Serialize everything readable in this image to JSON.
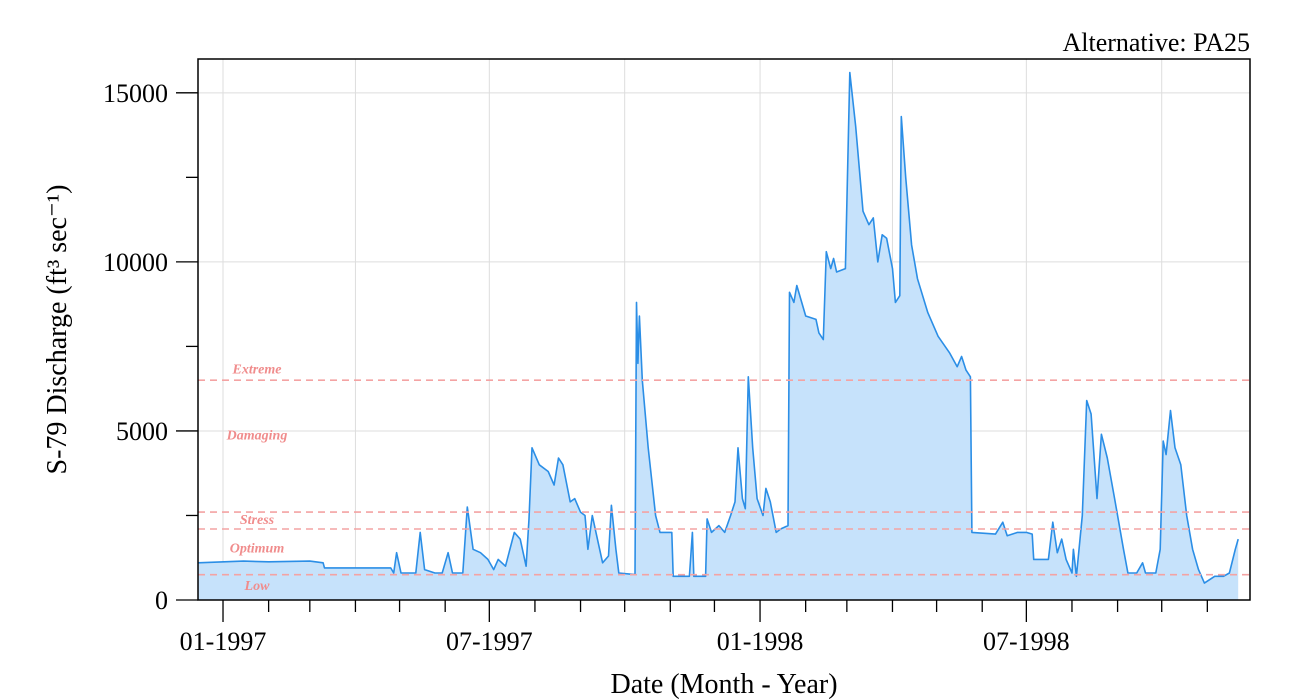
{
  "header": {
    "alternative_label": "Alternative: PA25"
  },
  "chart_data": {
    "type": "area",
    "xlabel": "Date (Month - Year)",
    "ylabel": "S-79 Discharge (ft³ sec⁻¹)",
    "x_range": [
      "1996-12-15",
      "1998-11-30"
    ],
    "ylim": [
      0,
      16000
    ],
    "y_ticks": [
      0,
      5000,
      10000,
      15000
    ],
    "x_tick_labels": [
      {
        "date": "1997-01-01",
        "label": "01-1997"
      },
      {
        "date": "1997-07-01",
        "label": "07-1997"
      },
      {
        "date": "1998-01-01",
        "label": "01-1998"
      },
      {
        "date": "1998-07-01",
        "label": "07-1998"
      }
    ],
    "grid": true,
    "colors": {
      "line": "#2b8ee6",
      "fill": "#c6e2fb",
      "threshold": "#f4a3a3",
      "zone_label": "#f08c8c",
      "grid": "#dddddd"
    },
    "thresholds": [
      750,
      2100,
      2600,
      6500
    ],
    "zone_labels": [
      {
        "label": "Extreme",
        "y": 6700
      },
      {
        "label": "Damaging",
        "y": 4750
      },
      {
        "label": "Stress",
        "y": 2250
      },
      {
        "label": "Optimum",
        "y": 1400
      },
      {
        "label": "Low",
        "y": 300
      }
    ],
    "series": [
      {
        "points": [
          [
            "1996-12-15",
            1100
          ],
          [
            "1997-01-15",
            1150
          ],
          [
            "1997-02-01",
            1130
          ],
          [
            "1997-03-01",
            1150
          ],
          [
            "1997-03-10",
            1100
          ],
          [
            "1997-03-11",
            950
          ],
          [
            "1997-04-25",
            950
          ],
          [
            "1997-04-27",
            800
          ],
          [
            "1997-04-29",
            1400
          ],
          [
            "1997-05-02",
            800
          ],
          [
            "1997-05-12",
            800
          ],
          [
            "1997-05-15",
            2000
          ],
          [
            "1997-05-18",
            900
          ],
          [
            "1997-05-25",
            800
          ],
          [
            "1997-05-30",
            800
          ],
          [
            "1997-06-03",
            1400
          ],
          [
            "1997-06-06",
            800
          ],
          [
            "1997-06-13",
            800
          ],
          [
            "1997-06-16",
            2750
          ],
          [
            "1997-06-20",
            1500
          ],
          [
            "1997-06-25",
            1400
          ],
          [
            "1997-06-30",
            1200
          ],
          [
            "1997-07-04",
            900
          ],
          [
            "1997-07-07",
            1200
          ],
          [
            "1997-07-12",
            1000
          ],
          [
            "1997-07-18",
            2000
          ],
          [
            "1997-07-22",
            1800
          ],
          [
            "1997-07-26",
            1000
          ],
          [
            "1997-07-28",
            2400
          ],
          [
            "1997-07-30",
            4500
          ],
          [
            "1997-08-04",
            4000
          ],
          [
            "1997-08-10",
            3800
          ],
          [
            "1997-08-14",
            3400
          ],
          [
            "1997-08-17",
            4200
          ],
          [
            "1997-08-20",
            4000
          ],
          [
            "1997-08-25",
            2900
          ],
          [
            "1997-08-28",
            3000
          ],
          [
            "1997-09-01",
            2600
          ],
          [
            "1997-09-04",
            2500
          ],
          [
            "1997-09-06",
            1500
          ],
          [
            "1997-09-09",
            2500
          ],
          [
            "1997-09-12",
            1900
          ],
          [
            "1997-09-16",
            1100
          ],
          [
            "1997-09-20",
            1300
          ],
          [
            "1997-09-22",
            2800
          ],
          [
            "1997-09-25",
            1500
          ],
          [
            "1997-09-27",
            800
          ],
          [
            "1997-10-08",
            750
          ],
          [
            "1997-10-09",
            8800
          ],
          [
            "1997-10-10",
            7000
          ],
          [
            "1997-10-11",
            8400
          ],
          [
            "1997-10-13",
            6500
          ],
          [
            "1997-10-17",
            4500
          ],
          [
            "1997-10-22",
            2500
          ],
          [
            "1997-10-25",
            2000
          ],
          [
            "1997-11-02",
            2000
          ],
          [
            "1997-11-03",
            700
          ],
          [
            "1997-11-14",
            700
          ],
          [
            "1997-11-16",
            2000
          ],
          [
            "1997-11-17",
            700
          ],
          [
            "1997-11-25",
            700
          ],
          [
            "1997-11-26",
            2400
          ],
          [
            "1997-11-29",
            2000
          ],
          [
            "1997-12-04",
            2200
          ],
          [
            "1997-12-08",
            2000
          ],
          [
            "1997-12-12",
            2500
          ],
          [
            "1997-12-15",
            2900
          ],
          [
            "1997-12-17",
            4500
          ],
          [
            "1997-12-20",
            3000
          ],
          [
            "1997-12-22",
            2700
          ],
          [
            "1997-12-24",
            6600
          ],
          [
            "1997-12-27",
            4500
          ],
          [
            "1997-12-30",
            3000
          ],
          [
            "1998-01-03",
            2500
          ],
          [
            "1998-01-05",
            3300
          ],
          [
            "1998-01-08",
            2900
          ],
          [
            "1998-01-12",
            2000
          ],
          [
            "1998-01-15",
            2100
          ],
          [
            "1998-01-20",
            2200
          ],
          [
            "1998-01-21",
            9100
          ],
          [
            "1998-01-24",
            8800
          ],
          [
            "1998-01-26",
            9300
          ],
          [
            "1998-02-01",
            8400
          ],
          [
            "1998-02-08",
            8300
          ],
          [
            "1998-02-10",
            7900
          ],
          [
            "1998-02-13",
            7700
          ],
          [
            "1998-02-15",
            10300
          ],
          [
            "1998-02-18",
            9800
          ],
          [
            "1998-02-20",
            10100
          ],
          [
            "1998-02-22",
            9700
          ],
          [
            "1998-02-28",
            9800
          ],
          [
            "1998-03-03",
            15600
          ],
          [
            "1998-03-07",
            14000
          ],
          [
            "1998-03-12",
            11500
          ],
          [
            "1998-03-16",
            11100
          ],
          [
            "1998-03-19",
            11300
          ],
          [
            "1998-03-22",
            10000
          ],
          [
            "1998-03-25",
            10800
          ],
          [
            "1998-03-28",
            10700
          ],
          [
            "1998-04-01",
            9800
          ],
          [
            "1998-04-03",
            8800
          ],
          [
            "1998-04-06",
            9000
          ],
          [
            "1998-04-07",
            14300
          ],
          [
            "1998-04-10",
            12500
          ],
          [
            "1998-04-14",
            10500
          ],
          [
            "1998-04-18",
            9500
          ],
          [
            "1998-04-25",
            8500
          ],
          [
            "1998-05-02",
            7800
          ],
          [
            "1998-05-10",
            7300
          ],
          [
            "1998-05-15",
            6900
          ],
          [
            "1998-05-18",
            7200
          ],
          [
            "1998-05-21",
            6800
          ],
          [
            "1998-05-24",
            6600
          ],
          [
            "1998-05-25",
            2000
          ],
          [
            "1998-06-10",
            1950
          ],
          [
            "1998-06-15",
            2300
          ],
          [
            "1998-06-18",
            1900
          ],
          [
            "1998-06-25",
            2000
          ],
          [
            "1998-07-01",
            2000
          ],
          [
            "1998-07-05",
            1950
          ],
          [
            "1998-07-06",
            1200
          ],
          [
            "1998-07-16",
            1200
          ],
          [
            "1998-07-19",
            2300
          ],
          [
            "1998-07-22",
            1400
          ],
          [
            "1998-07-25",
            1800
          ],
          [
            "1998-07-28",
            1200
          ],
          [
            "1998-08-01",
            800
          ],
          [
            "1998-08-02",
            1500
          ],
          [
            "1998-08-04",
            700
          ],
          [
            "1998-08-08",
            2500
          ],
          [
            "1998-08-11",
            5900
          ],
          [
            "1998-08-14",
            5500
          ],
          [
            "1998-08-18",
            3000
          ],
          [
            "1998-08-21",
            4900
          ],
          [
            "1998-08-25",
            4200
          ],
          [
            "1998-08-30",
            3000
          ],
          [
            "1998-09-05",
            1500
          ],
          [
            "1998-09-08",
            800
          ],
          [
            "1998-09-14",
            800
          ],
          [
            "1998-09-18",
            1100
          ],
          [
            "1998-09-20",
            800
          ],
          [
            "1998-09-27",
            800
          ],
          [
            "1998-09-30",
            1500
          ],
          [
            "1998-10-02",
            4700
          ],
          [
            "1998-10-04",
            4300
          ],
          [
            "1998-10-07",
            5600
          ],
          [
            "1998-10-10",
            4500
          ],
          [
            "1998-10-14",
            4000
          ],
          [
            "1998-10-18",
            2500
          ],
          [
            "1998-10-22",
            1500
          ],
          [
            "1998-10-26",
            900
          ],
          [
            "1998-10-30",
            500
          ],
          [
            "1998-11-06",
            700
          ],
          [
            "1998-11-12",
            700
          ],
          [
            "1998-11-16",
            800
          ],
          [
            "1998-11-20",
            1500
          ],
          [
            "1998-11-22",
            1800
          ]
        ]
      }
    ]
  }
}
